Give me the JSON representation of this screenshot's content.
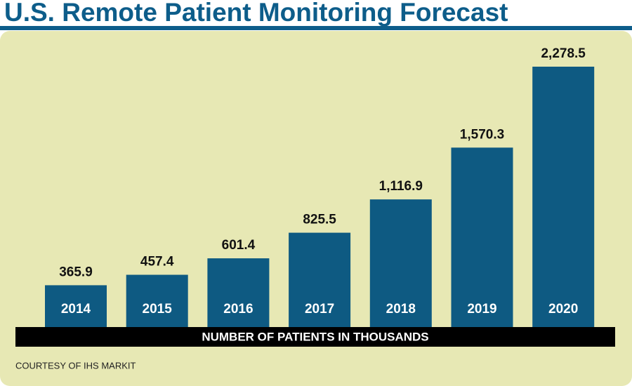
{
  "chart_data": {
    "type": "bar",
    "title": "U.S. Remote Patient Monitoring Forecast",
    "categories": [
      "2014",
      "2015",
      "2016",
      "2017",
      "2018",
      "2019",
      "2020"
    ],
    "values": [
      365.9,
      457.4,
      601.4,
      825.5,
      1116.9,
      1570.3,
      2278.5
    ],
    "value_labels": [
      "365.9",
      "457.4",
      "601.4",
      "825.5",
      "1,116.9",
      "1,570.3",
      "2,278.5"
    ],
    "color": "#0e5a82",
    "xlabel": "NUMBER OF PATIENTS IN THOUSANDS",
    "source": "COURTESY OF IHS MARKIT"
  }
}
